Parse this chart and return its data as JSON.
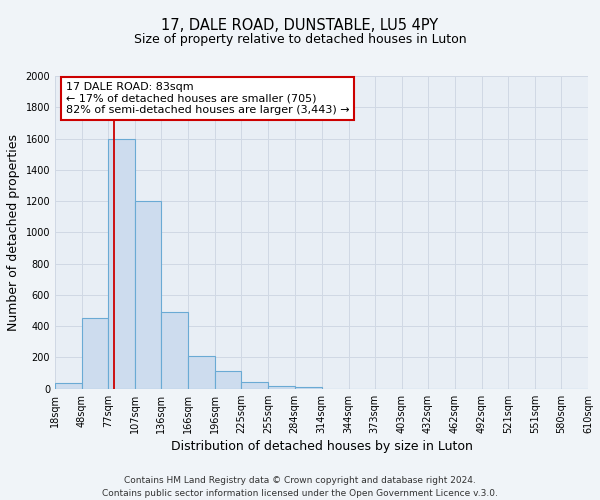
{
  "title": "17, DALE ROAD, DUNSTABLE, LU5 4PY",
  "subtitle": "Size of property relative to detached houses in Luton",
  "xlabel": "Distribution of detached houses by size in Luton",
  "ylabel": "Number of detached properties",
  "bar_heights": [
    35,
    455,
    1600,
    1200,
    490,
    210,
    115,
    45,
    20,
    10,
    0,
    0,
    0,
    0,
    0,
    0,
    0,
    0,
    0,
    0
  ],
  "bin_labels": [
    "18sqm",
    "48sqm",
    "77sqm",
    "107sqm",
    "136sqm",
    "166sqm",
    "196sqm",
    "225sqm",
    "255sqm",
    "284sqm",
    "314sqm",
    "344sqm",
    "373sqm",
    "403sqm",
    "432sqm",
    "462sqm",
    "492sqm",
    "521sqm",
    "551sqm",
    "580sqm",
    "610sqm"
  ],
  "bar_color": "#cddcee",
  "bar_edge_color": "#6aaad4",
  "ylim": [
    0,
    2000
  ],
  "yticks": [
    0,
    200,
    400,
    600,
    800,
    1000,
    1200,
    1400,
    1600,
    1800,
    2000
  ],
  "property_line_x": 83,
  "bin_edges": [
    18,
    48,
    77,
    107,
    136,
    166,
    196,
    225,
    255,
    284,
    314,
    344,
    373,
    403,
    432,
    462,
    492,
    521,
    551,
    580,
    610
  ],
  "annotation_title": "17 DALE ROAD: 83sqm",
  "annotation_line2": "← 17% of detached houses are smaller (705)",
  "annotation_line3": "82% of semi-detached houses are larger (3,443) →",
  "annotation_box_color": "#ffffff",
  "annotation_box_edge": "#cc0000",
  "red_line_color": "#cc0000",
  "grid_color": "#d0d8e4",
  "plot_bg_color": "#e8eef5",
  "fig_bg_color": "#f0f4f8",
  "footer_text": "Contains HM Land Registry data © Crown copyright and database right 2024.\nContains public sector information licensed under the Open Government Licence v.3.0.",
  "title_fontsize": 10.5,
  "subtitle_fontsize": 9,
  "axis_label_fontsize": 9,
  "tick_fontsize": 7,
  "annotation_fontsize": 8,
  "footer_fontsize": 6.5
}
